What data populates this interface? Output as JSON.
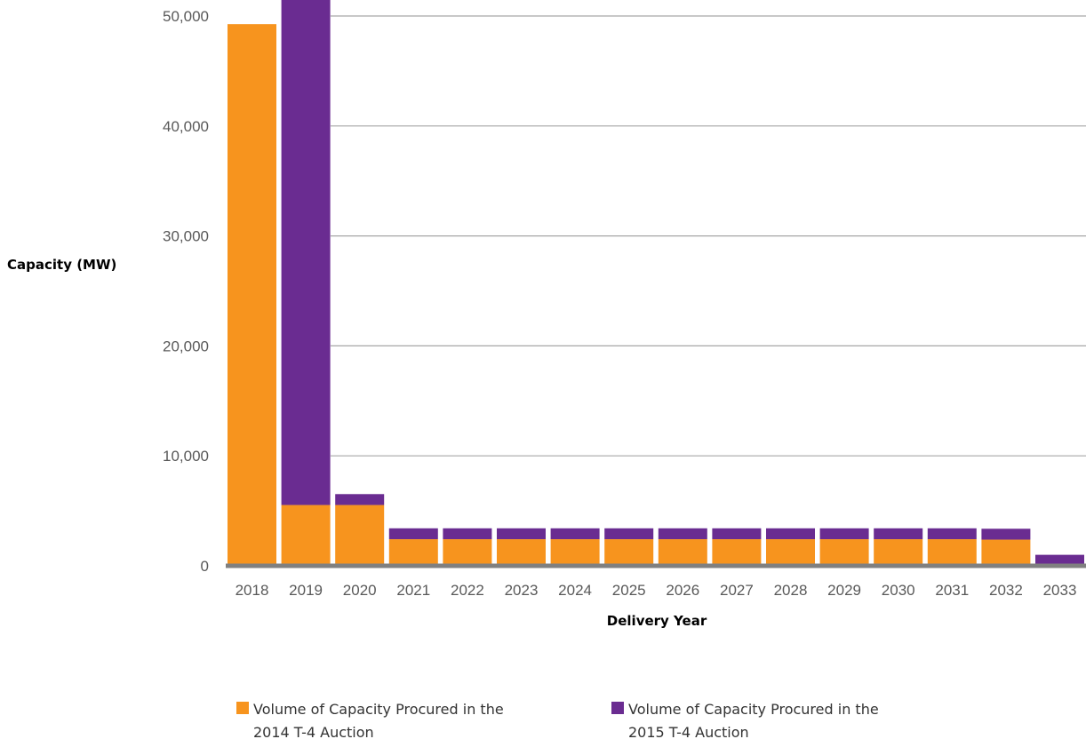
{
  "colors": {
    "series_2014": "#F7941E",
    "series_2015": "#6A2C91",
    "gridline": "#A6A6A6",
    "baseline": "#808080"
  },
  "chart_data": {
    "type": "bar",
    "stacked": true,
    "xlabel": "Delivery Year",
    "ylabel": "Capacity (MW)",
    "ylim": [
      0,
      50000
    ],
    "yticks": [
      0,
      10000,
      20000,
      30000,
      40000,
      50000
    ],
    "ytick_labels": [
      "0",
      "10,000",
      "20,000",
      "30,000",
      "40,000",
      "50,000"
    ],
    "grid": true,
    "legend_position": "bottom",
    "categories": [
      "2018",
      "2019",
      "2020",
      "2021",
      "2022",
      "2023",
      "2024",
      "2025",
      "2026",
      "2027",
      "2028",
      "2029",
      "2030",
      "2031",
      "2032",
      "2033"
    ],
    "series": [
      {
        "name": "Volume of Capacity Procured in the 2014 T-4 Auction",
        "color": "#F7941E",
        "values": [
          49260,
          5530,
          5530,
          2420,
          2420,
          2420,
          2420,
          2420,
          2420,
          2420,
          2420,
          2420,
          2420,
          2420,
          2380,
          0
        ]
      },
      {
        "name": "Volume of Capacity Procured in the 2015 T-4 Auction",
        "color": "#6A2C91",
        "values": [
          0,
          46350,
          990,
          990,
          990,
          990,
          990,
          990,
          990,
          990,
          990,
          990,
          990,
          990,
          990,
          1000
        ]
      }
    ]
  },
  "legend": {
    "items": [
      {
        "line1": "Volume of Capacity Procured in the",
        "line2": "2014 T-4 Auction"
      },
      {
        "line1": "Volume of Capacity Procured in the",
        "line2": "2015 T-4 Auction"
      }
    ]
  }
}
